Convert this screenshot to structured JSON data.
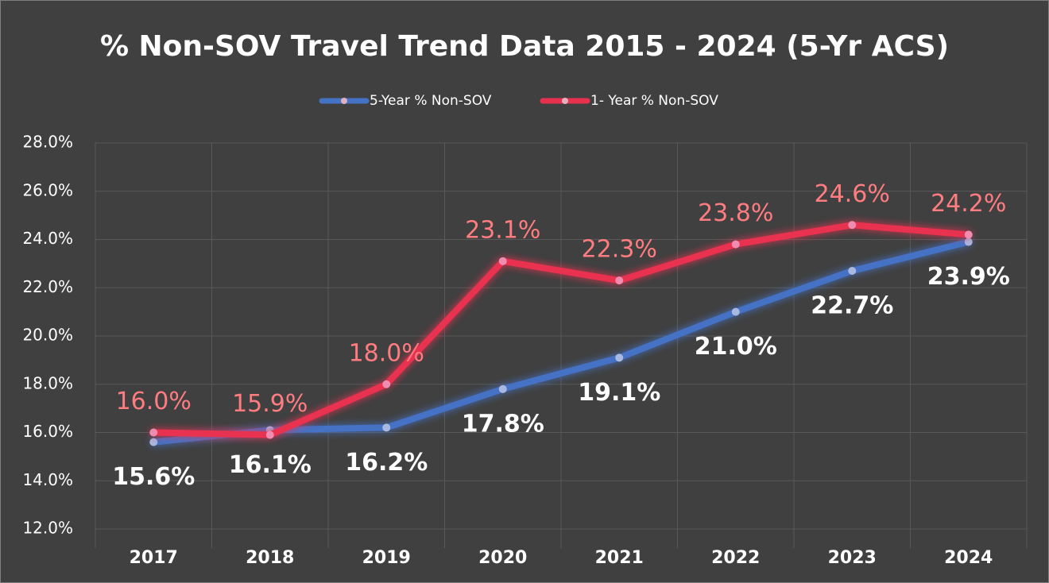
{
  "chart_data": {
    "type": "line",
    "title": "% Non-SOV Travel Trend Data 2015 - 2024 (5-Yr ACS)",
    "categories": [
      "2017",
      "2018",
      "2019",
      "2020",
      "2021",
      "2022",
      "2023",
      "2024"
    ],
    "series": [
      {
        "name": "5-Year % Non-SOV",
        "color": "#4472c4",
        "label_color": "#ffffff",
        "values": [
          15.6,
          16.1,
          16.2,
          17.8,
          19.1,
          21.0,
          22.7,
          23.9
        ],
        "value_labels": [
          "15.6%",
          "16.1%",
          "16.2%",
          "17.8%",
          "19.1%",
          "21.0%",
          "22.7%",
          "23.9%"
        ]
      },
      {
        "name": "1- Year % Non-SOV",
        "color": "#e8314f",
        "label_color": "#ff7c80",
        "values": [
          16.0,
          15.9,
          18.0,
          23.1,
          22.3,
          23.8,
          24.6,
          24.2
        ],
        "value_labels": [
          "16.0%",
          "15.9%",
          "18.0%",
          "23.1%",
          "22.3%",
          "23.8%",
          "24.6%",
          "24.2%"
        ]
      }
    ],
    "ylim": [
      12,
      28
    ],
    "yticks": [
      {
        "value": 12,
        "label": "12.0%"
      },
      {
        "value": 14,
        "label": "14.0%"
      },
      {
        "value": 16,
        "label": "16.0%"
      },
      {
        "value": 18,
        "label": "18.0%"
      },
      {
        "value": 20,
        "label": "20.0%"
      },
      {
        "value": 22,
        "label": "22.0%"
      },
      {
        "value": 24,
        "label": "24.0%"
      },
      {
        "value": 26,
        "label": "26.0%"
      },
      {
        "value": 28,
        "label": "28.0%"
      }
    ],
    "grid": true,
    "legend": "top"
  }
}
